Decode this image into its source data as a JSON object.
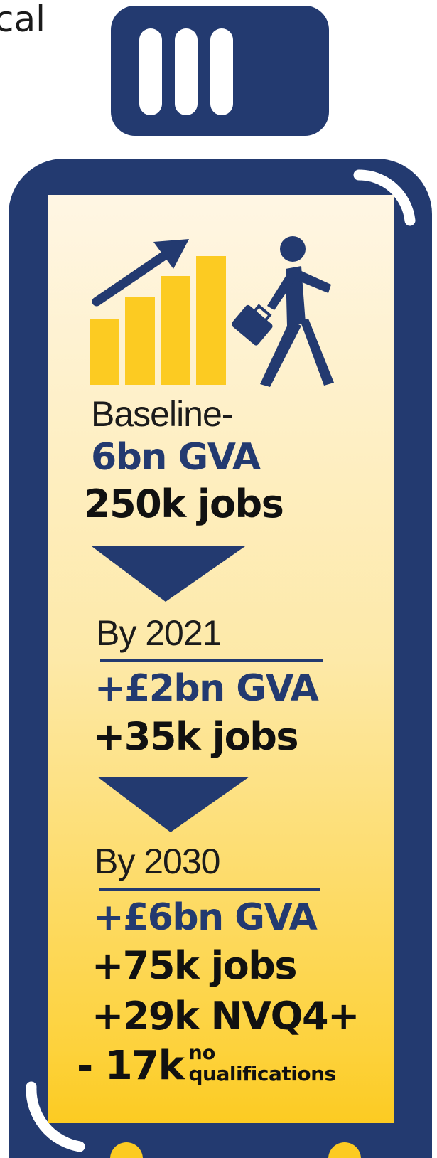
{
  "header_fragment": "cal",
  "colors": {
    "navy": "#233a70",
    "gold": "#fccb22",
    "panel_top": "#fff6e4",
    "text_dark": "#111111"
  },
  "icons": [
    "growth-bar-chart-icon",
    "trend-arrow-icon",
    "walking-businessman-icon",
    "down-triangle-icon"
  ],
  "baseline": {
    "label": "Baseline-",
    "gva": "6bn GVA",
    "jobs": "250k jobs"
  },
  "by_2021": {
    "label": "By 2021",
    "gva": "+£2bn GVA",
    "jobs": "+35k jobs"
  },
  "by_2030": {
    "label": "By 2030",
    "gva": "+£6bn GVA",
    "jobs": "+75k jobs",
    "nvq": "+29k NVQ4+",
    "no_qual_value": "- 17k",
    "no_qual_sup": "no",
    "no_qual_sub": "qualifications"
  }
}
